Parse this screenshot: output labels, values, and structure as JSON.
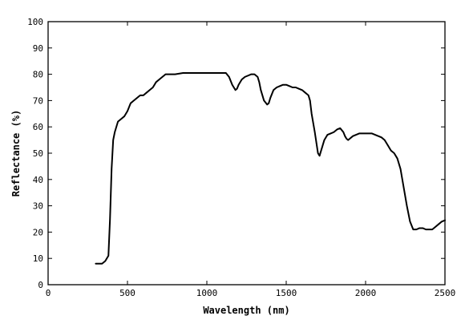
{
  "chart_data": {
    "type": "line",
    "title": "",
    "xlabel": "Wavelength (nm)",
    "ylabel": "Reflectance (%)",
    "xlim": [
      0,
      2500
    ],
    "ylim": [
      0,
      100
    ],
    "xticks": [
      0,
      500,
      1000,
      1500,
      2000,
      2500
    ],
    "yticks": [
      0,
      10,
      20,
      30,
      40,
      50,
      60,
      70,
      80,
      90,
      100
    ],
    "grid": false,
    "legend": "none",
    "series": [
      {
        "color": "#000000",
        "x": [
          300,
          340,
          360,
          380,
          390,
          400,
          410,
          420,
          440,
          460,
          480,
          500,
          520,
          540,
          560,
          580,
          600,
          620,
          640,
          660,
          680,
          700,
          720,
          740,
          760,
          780,
          800,
          850,
          900,
          950,
          1000,
          1050,
          1100,
          1120,
          1140,
          1160,
          1180,
          1190,
          1200,
          1220,
          1240,
          1260,
          1280,
          1300,
          1320,
          1330,
          1340,
          1360,
          1380,
          1390,
          1400,
          1420,
          1440,
          1460,
          1480,
          1500,
          1520,
          1540,
          1560,
          1580,
          1600,
          1620,
          1640,
          1650,
          1660,
          1680,
          1700,
          1710,
          1720,
          1740,
          1760,
          1780,
          1800,
          1820,
          1840,
          1860,
          1870,
          1880,
          1890,
          1900,
          1920,
          1940,
          1960,
          1980,
          2000,
          2020,
          2040,
          2060,
          2080,
          2100,
          2120,
          2140,
          2160,
          2180,
          2200,
          2220,
          2240,
          2260,
          2280,
          2300,
          2320,
          2340,
          2360,
          2380,
          2400,
          2420,
          2440,
          2460,
          2480,
          2500
        ],
        "y": [
          8,
          8,
          9,
          11,
          25,
          44,
          55,
          58,
          62,
          63,
          64,
          66,
          69,
          70,
          71,
          72,
          72,
          73,
          74,
          75,
          77,
          78,
          79,
          80,
          80,
          80,
          80,
          80.5,
          80.5,
          80.5,
          80.5,
          80.5,
          80.5,
          80.5,
          79,
          76,
          74,
          74.5,
          76,
          78,
          79,
          79.5,
          80,
          80,
          79,
          77,
          74,
          70,
          68.5,
          69,
          71,
          74,
          75,
          75.5,
          76,
          76,
          75.5,
          75,
          75,
          74.5,
          74,
          73,
          72,
          70,
          65,
          58,
          50,
          49,
          51,
          55,
          57,
          57.5,
          58,
          59,
          59.5,
          58,
          56.5,
          55.5,
          55,
          55.5,
          56.5,
          57,
          57.5,
          57.5,
          57.5,
          57.5,
          57.5,
          57,
          56.5,
          56,
          55,
          53,
          51,
          50,
          48,
          44,
          37,
          30,
          24,
          21,
          21,
          21.5,
          21.5,
          21,
          21,
          21,
          22,
          23,
          24,
          24.5
        ]
      }
    ]
  }
}
